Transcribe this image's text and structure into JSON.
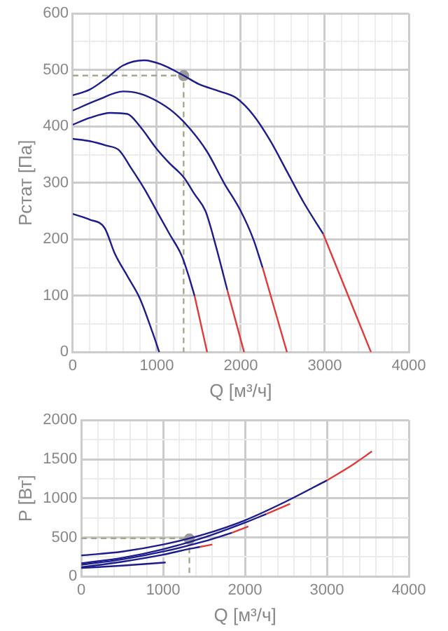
{
  "chart_data": [
    {
      "type": "line",
      "xlabel": "Q [м³/ч]",
      "ylabel": "Pстат [Па]",
      "xlim": [
        0,
        4000
      ],
      "ylim": [
        0,
        600
      ],
      "grid": true,
      "legend": false,
      "marker": "none",
      "xticks": [
        0,
        {
          "value": 200,
          "label": null
        },
        {
          "value": 400,
          "label": null
        },
        {
          "value": 600,
          "label": null
        },
        {
          "value": 800,
          "label": null
        },
        1000,
        {
          "value": 1200,
          "label": null
        },
        {
          "value": 1400,
          "label": null
        },
        {
          "value": 1600,
          "label": null
        },
        {
          "value": 1800,
          "label": null
        },
        2000,
        {
          "value": 2200,
          "label": null
        },
        {
          "value": 2400,
          "label": null
        },
        {
          "value": 2600,
          "label": null
        },
        {
          "value": 2800,
          "label": null
        },
        3000,
        {
          "value": 3200,
          "label": null
        },
        {
          "value": 3400,
          "label": null
        },
        {
          "value": 3600,
          "label": null
        },
        {
          "value": 3800,
          "label": null
        },
        4000
      ],
      "yticks": [
        0,
        {
          "value": 50,
          "label": null
        },
        100,
        {
          "value": 150,
          "label": null
        },
        200,
        {
          "value": 250,
          "label": null
        },
        300,
        {
          "value": 350,
          "label": null
        },
        400,
        {
          "value": 450,
          "label": null
        },
        500,
        {
          "value": 550,
          "label": null
        },
        600
      ],
      "series": [
        {
          "type": "line",
          "color": "#1c1c8c",
          "x": [
            0,
            200,
            380,
            500,
            650,
            800,
            950,
            1030
          ],
          "values": [
            245,
            235,
            220,
            175,
            135,
            95,
            35,
            0
          ]
        },
        {
          "type": "line",
          "color": "#1c1c8c",
          "x": [
            0,
            200,
            400,
            550,
            700,
            850,
            1000,
            1150,
            1300,
            1380,
            1450
          ],
          "values": [
            378,
            374,
            366,
            358,
            325,
            290,
            250,
            210,
            170,
            135,
            100
          ]
        },
        {
          "type": "line",
          "color": "#e03a3a",
          "x": [
            1450,
            1600
          ],
          "values": [
            100,
            0
          ]
        },
        {
          "type": "line",
          "color": "#1c1c8c",
          "x": [
            0,
            200,
            450,
            650,
            800,
            1000,
            1150,
            1320,
            1450,
            1580,
            1700,
            1840
          ],
          "values": [
            403,
            415,
            424,
            422,
            400,
            360,
            335,
            310,
            280,
            250,
            190,
            110
          ]
        },
        {
          "type": "line",
          "color": "#e03a3a",
          "x": [
            1840,
            2040
          ],
          "values": [
            110,
            0
          ]
        },
        {
          "type": "line",
          "color": "#1c1c8c",
          "x": [
            0,
            300,
            600,
            800,
            1000,
            1200,
            1400,
            1600,
            1800,
            2000,
            2150,
            2260
          ],
          "values": [
            428,
            447,
            462,
            458,
            445,
            425,
            395,
            355,
            300,
            250,
            200,
            150
          ]
        },
        {
          "type": "line",
          "color": "#e03a3a",
          "x": [
            2260,
            2550
          ],
          "values": [
            150,
            0
          ]
        },
        {
          "type": "line",
          "color": "#1c1c8c",
          "x": [
            0,
            200,
            400,
            600,
            850,
            1050,
            1320,
            1500,
            1750,
            1950,
            2150,
            2350,
            2550,
            2750,
            2980
          ],
          "values": [
            455,
            465,
            485,
            508,
            517,
            510,
            490,
            475,
            462,
            450,
            420,
            375,
            320,
            265,
            210
          ]
        },
        {
          "type": "line",
          "color": "#e03a3a",
          "x": [
            2980,
            3550
          ],
          "values": [
            210,
            0
          ]
        },
        {
          "type": "line",
          "color": "#a4a88c",
          "line_style": "dashed",
          "x": [
            0,
            1320,
            1320
          ],
          "values": [
            490,
            490,
            0
          ]
        },
        {
          "type": "scatter",
          "color": "#9a9a9a",
          "marker": "circle",
          "x": [
            1320
          ],
          "values": [
            490
          ]
        }
      ]
    },
    {
      "type": "line",
      "xlabel": "Q [м³/ч]",
      "ylabel": "P [Вт]",
      "xlim": [
        0,
        4000
      ],
      "ylim": [
        0,
        2000
      ],
      "grid": true,
      "legend": false,
      "marker": "none",
      "xticks": [
        0,
        {
          "value": 200,
          "label": null
        },
        {
          "value": 400,
          "label": null
        },
        {
          "value": 600,
          "label": null
        },
        {
          "value": 800,
          "label": null
        },
        1000,
        {
          "value": 1200,
          "label": null
        },
        {
          "value": 1400,
          "label": null
        },
        {
          "value": 1600,
          "label": null
        },
        {
          "value": 1800,
          "label": null
        },
        2000,
        {
          "value": 2200,
          "label": null
        },
        {
          "value": 2400,
          "label": null
        },
        {
          "value": 2600,
          "label": null
        },
        {
          "value": 2800,
          "label": null
        },
        3000,
        {
          "value": 3200,
          "label": null
        },
        {
          "value": 3400,
          "label": null
        },
        {
          "value": 3600,
          "label": null
        },
        {
          "value": 3800,
          "label": null
        },
        4000
      ],
      "yticks": [
        0,
        {
          "value": 250,
          "label": null
        },
        500,
        {
          "value": 750,
          "label": null
        },
        1000,
        {
          "value": 1250,
          "label": null
        },
        1500,
        {
          "value": 1750,
          "label": null
        },
        2000
      ],
      "series": [
        {
          "type": "line",
          "color": "#1c1c8c",
          "x": [
            0,
            500,
            1030
          ],
          "values": [
            110,
            140,
            180
          ]
        },
        {
          "type": "line",
          "color": "#1c1c8c",
          "x": [
            0,
            500,
            1000,
            1300,
            1450
          ],
          "values": [
            120,
            190,
            280,
            350,
            380
          ]
        },
        {
          "type": "line",
          "color": "#e03a3a",
          "x": [
            1450,
            1600
          ],
          "values": [
            380,
            410
          ]
        },
        {
          "type": "line",
          "color": "#1c1c8c",
          "x": [
            0,
            500,
            1000,
            1500,
            1840
          ],
          "values": [
            150,
            220,
            320,
            450,
            560
          ]
        },
        {
          "type": "line",
          "color": "#e03a3a",
          "x": [
            1840,
            2040
          ],
          "values": [
            560,
            640
          ]
        },
        {
          "type": "line",
          "color": "#1c1c8c",
          "x": [
            0,
            500,
            1000,
            1500,
            2000,
            2260
          ],
          "values": [
            170,
            240,
            350,
            500,
            690,
            800
          ]
        },
        {
          "type": "line",
          "color": "#e03a3a",
          "x": [
            2260,
            2550
          ],
          "values": [
            800,
            930
          ]
        },
        {
          "type": "line",
          "color": "#1c1c8c",
          "x": [
            0,
            500,
            1000,
            1500,
            2000,
            2500,
            3000
          ],
          "values": [
            270,
            320,
            410,
            540,
            720,
            960,
            1230
          ]
        },
        {
          "type": "line",
          "color": "#e03a3a",
          "x": [
            3000,
            3300,
            3550
          ],
          "values": [
            1230,
            1420,
            1600
          ]
        },
        {
          "type": "line",
          "color": "#a4a88c",
          "line_style": "dashed",
          "x": [
            0,
            1320,
            1320
          ],
          "values": [
            490,
            490,
            0
          ]
        },
        {
          "type": "scatter",
          "color": "#9a9a9a",
          "marker": "circle",
          "x": [
            1320
          ],
          "values": [
            480
          ]
        }
      ]
    }
  ]
}
